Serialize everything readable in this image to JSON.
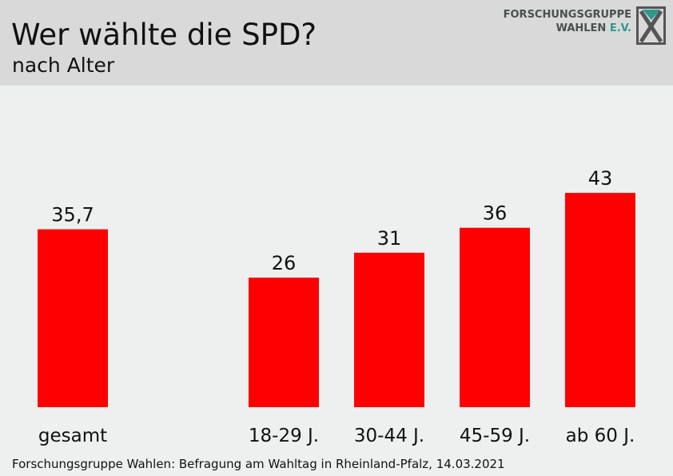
{
  "header": {
    "title": "Wer wählte die SPD?",
    "subtitle": "nach Alter",
    "logo_line1": "FORSCHUNGSGRUPPE",
    "logo_line2": "WAHLEN",
    "logo_ev": "E.V."
  },
  "footer": {
    "source": "Forschungsgruppe Wahlen: Befragung am Wahltag in Rheinland-Pfalz, 14.03.2021"
  },
  "chart_data": {
    "type": "bar",
    "title": "Wer wählte die SPD?",
    "subtitle": "nach Alter",
    "categories": [
      "gesamt",
      "18-29 J.",
      "30-44 J.",
      "45-59 J.",
      "ab 60 J."
    ],
    "values": [
      35.7,
      26,
      31,
      36,
      43
    ],
    "data_labels": [
      "35,7",
      "26",
      "31",
      "36",
      "43"
    ],
    "ylim": [
      0,
      50
    ],
    "grid": false,
    "legend": "none",
    "bar_color": "#ff0000"
  }
}
